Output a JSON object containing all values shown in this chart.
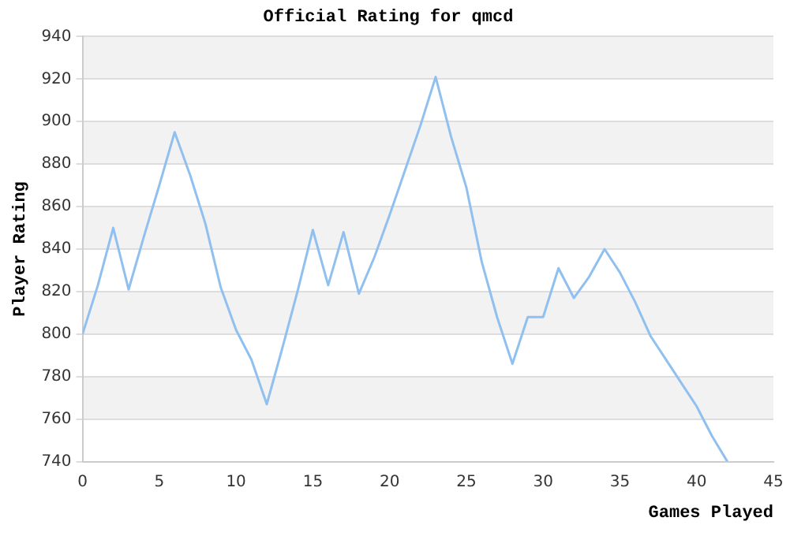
{
  "chart_data": {
    "type": "line",
    "title": "Official Rating for qmcd",
    "xlabel": "Games Played",
    "ylabel": "Player Rating",
    "x": [
      0,
      1,
      2,
      3,
      4,
      5,
      6,
      7,
      8,
      9,
      10,
      11,
      12,
      13,
      14,
      15,
      16,
      17,
      18,
      19,
      20,
      21,
      22,
      23,
      24,
      25,
      26,
      27,
      28,
      29,
      30,
      31,
      32,
      33,
      34,
      35,
      36,
      37,
      38,
      39,
      40,
      41,
      42
    ],
    "series": [
      {
        "color": "#90c0f0",
        "values": [
          800,
          823,
          850,
          821,
          846,
          870,
          895,
          875,
          852,
          822,
          802,
          788,
          767,
          793,
          820,
          849,
          823,
          848,
          819,
          836,
          856,
          877,
          898,
          921,
          893,
          869,
          834,
          808,
          786,
          808,
          808,
          831,
          817,
          827,
          840,
          829,
          815,
          799,
          788,
          777,
          766,
          752,
          740
        ]
      }
    ],
    "xlim": [
      0,
      45
    ],
    "xticks": [
      0,
      5,
      10,
      15,
      20,
      25,
      30,
      35,
      40,
      45
    ],
    "ylim": [
      740,
      940
    ],
    "yticks": [
      740,
      760,
      780,
      800,
      820,
      840,
      860,
      880,
      900,
      920,
      940
    ],
    "grid": "y",
    "legend": false,
    "marker": "none",
    "line_style": "solid"
  }
}
